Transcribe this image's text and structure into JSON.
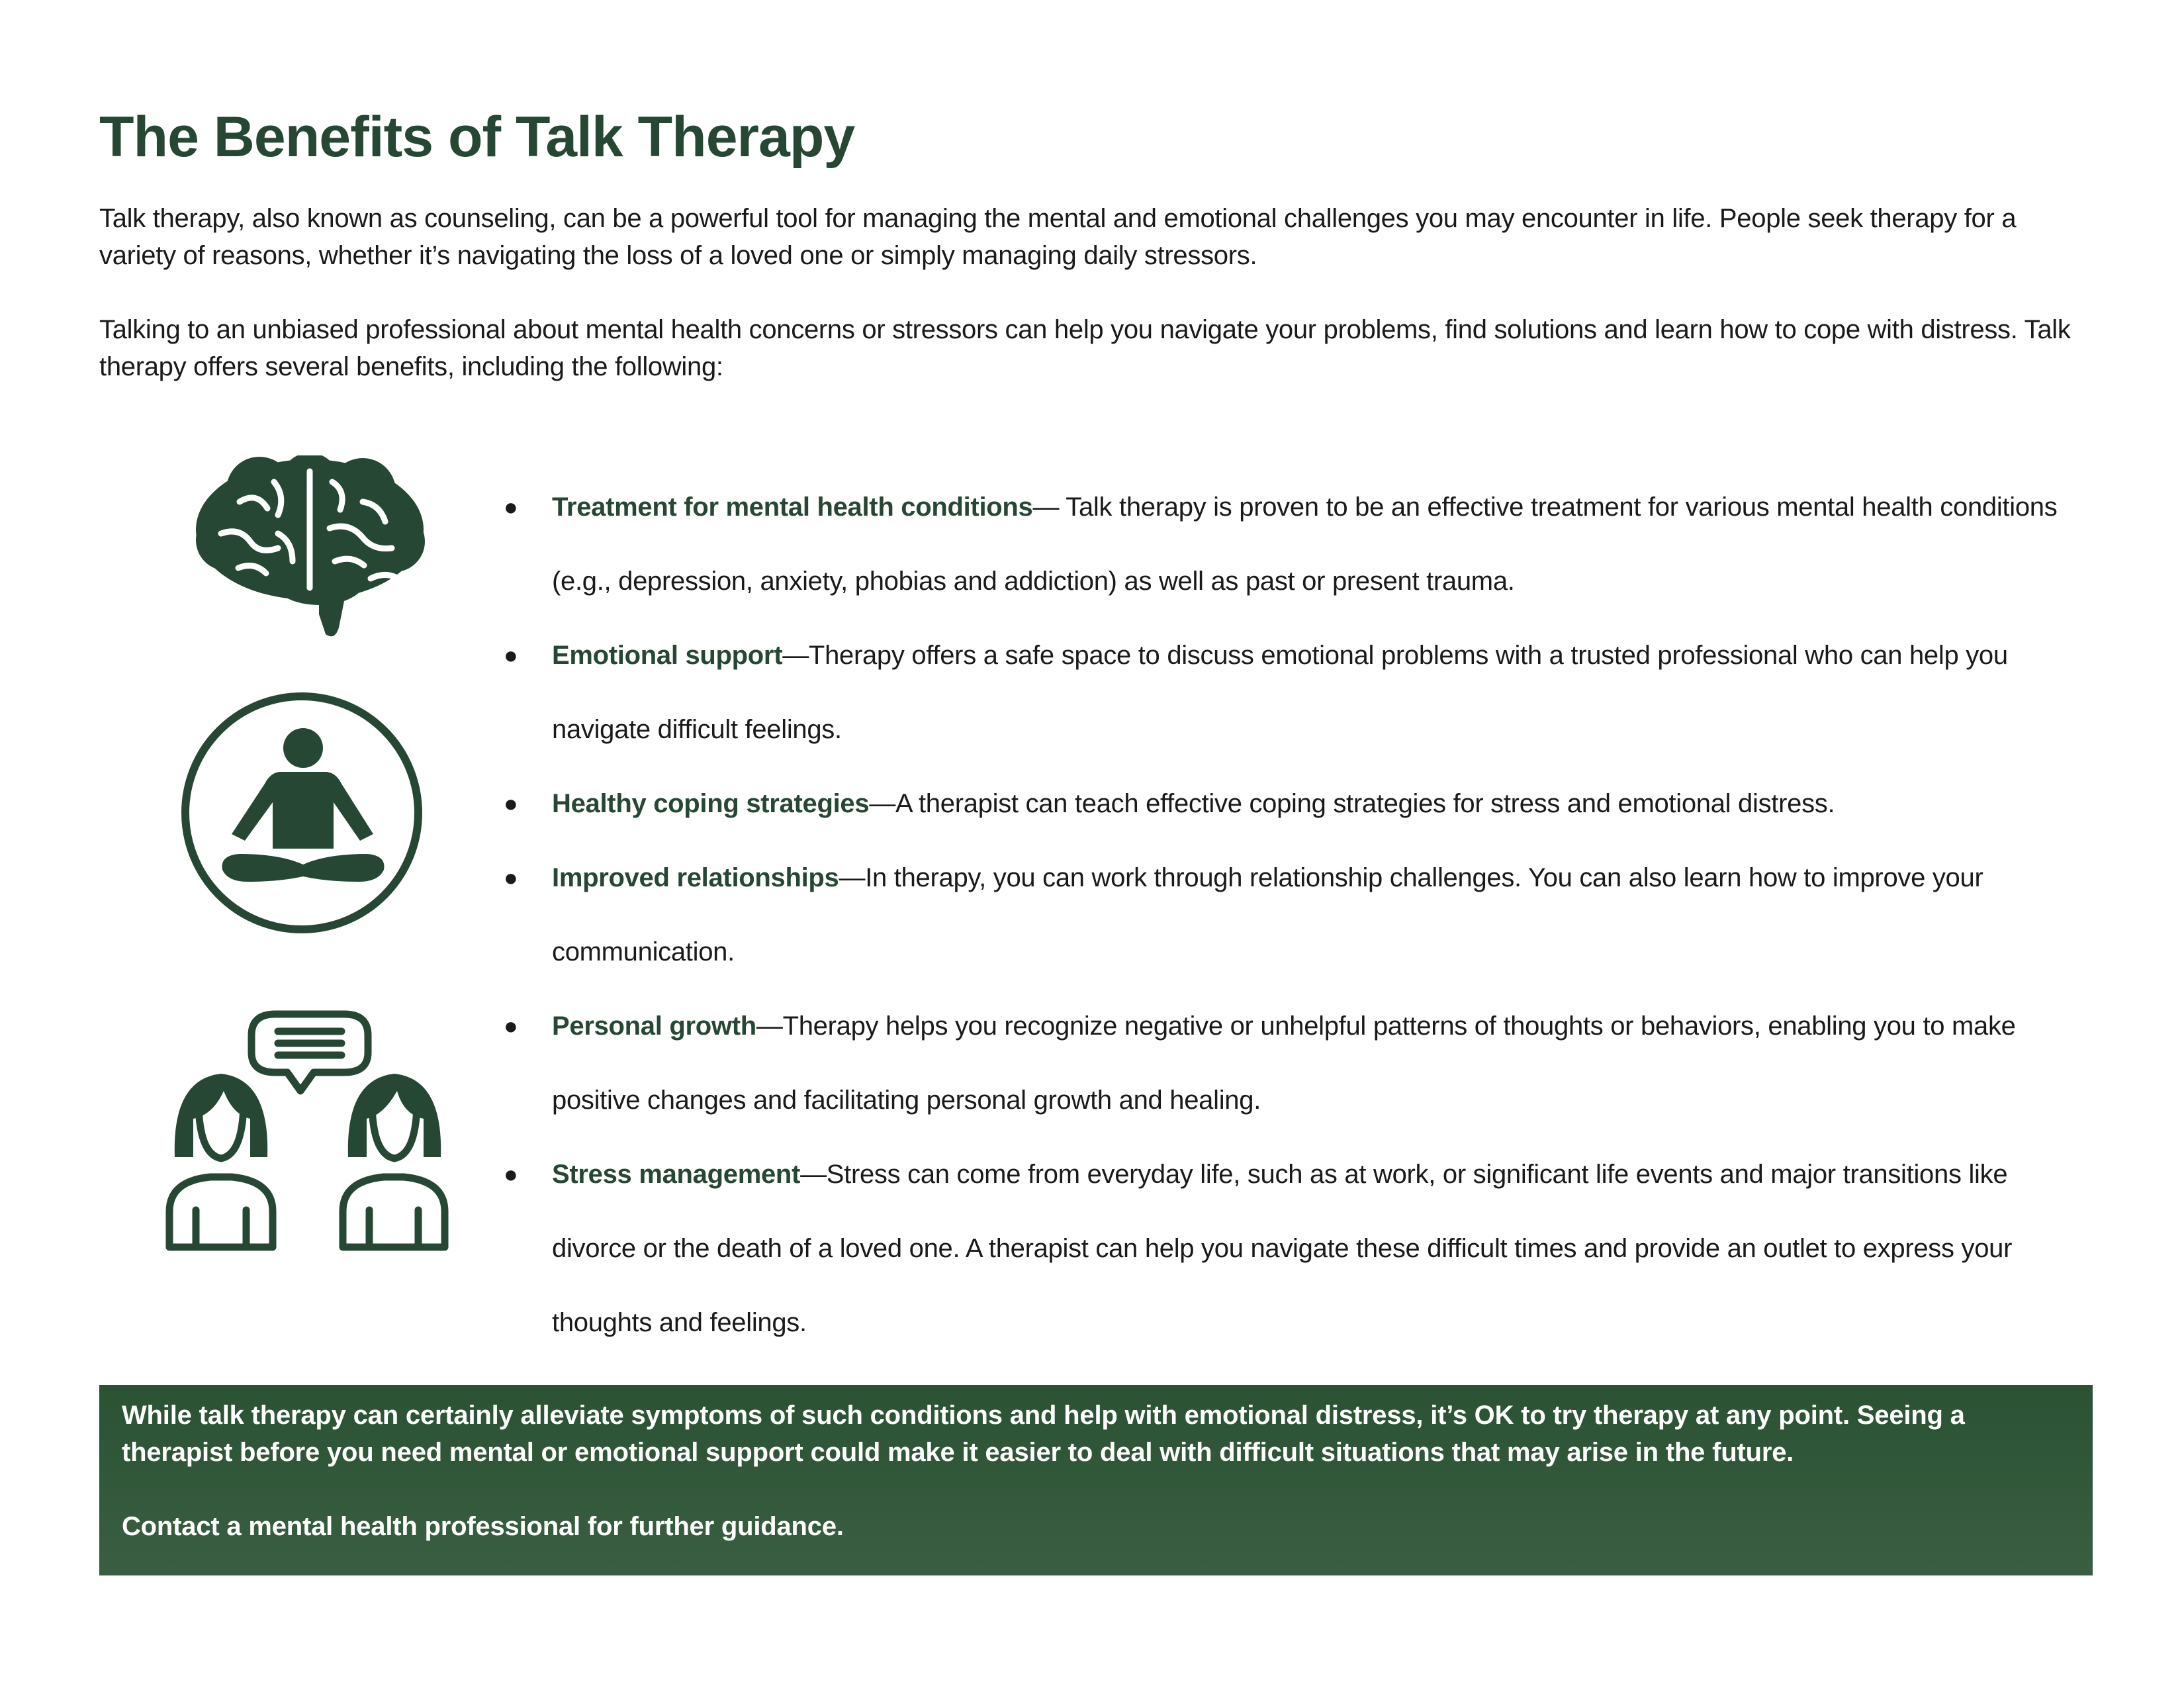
{
  "title": "The Benefits of Talk Therapy",
  "intro": [
    "Talk therapy, also known as counseling, can be a powerful tool for managing the mental and emotional challenges you may encounter in life. People seek therapy for a variety of reasons, whether it’s navigating the loss of a loved one or simply managing daily stressors.",
    "Talking to an unbiased professional about mental health concerns or stressors can help you navigate your problems, find solutions and learn how to cope with distress. Talk therapy offers several benefits, including the following:"
  ],
  "benefits": [
    {
      "title": "Treatment for mental health conditions",
      "text": "— Talk therapy is proven to be an effective treatment for various mental health conditions (e.g., depression, anxiety, phobias and addiction) as well as past or present trauma."
    },
    {
      "title": "Emotional support",
      "text": "—Therapy offers a safe space to discuss emotional problems with a trusted professional who can help you navigate difficult feelings."
    },
    {
      "title": "Healthy coping strategies",
      "text": "—A therapist can teach effective coping strategies for stress and emotional distress."
    },
    {
      "title": "Improved relationships",
      "text": "—In therapy, you can work through relationship challenges. You can also learn how to improve your communication."
    },
    {
      "title": "Personal growth",
      "text": "—Therapy helps you recognize negative or unhelpful patterns of thoughts or behaviors, enabling you to make positive changes and facilitating personal growth and healing."
    },
    {
      "title": "Stress management",
      "text": "—Stress can come from everyday life, such as at work, or significant life events and major transitions like divorce or the death of a loved one. A therapist can help you navigate these difficult times and provide an outlet to express your thoughts and feelings."
    }
  ],
  "callout": {
    "body": "While talk therapy can certainly alleviate symptoms of such conditions and help with emotional distress, it’s OK to try therapy at any point. Seeing a therapist before you need mental or emotional support could make it easier to deal with difficult situations that may arise in the future.",
    "contact": "Contact a mental health professional for further guidance."
  },
  "icons": [
    "brain-icon",
    "meditation-icon",
    "conversation-icon"
  ],
  "colors": {
    "accent": "#264733",
    "callout_bg": "#2f5638",
    "text": "#1a1a1a"
  }
}
